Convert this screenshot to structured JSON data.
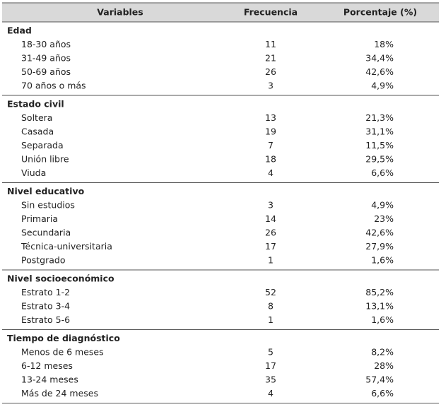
{
  "table": {
    "columns": [
      "Variables",
      "Frecuencia",
      "Porcentaje (%)"
    ],
    "groups": [
      {
        "title": "Edad",
        "rows": [
          [
            "18-30 años",
            11,
            "18%"
          ],
          [
            "31-49 años",
            21,
            "34,4%"
          ],
          [
            "50-69 años",
            26,
            "42,6%"
          ],
          [
            "70 años o más",
            3,
            "4,9%"
          ]
        ]
      },
      {
        "title": "Estado civil",
        "rows": [
          [
            "Soltera",
            13,
            "21,3%"
          ],
          [
            "Casada",
            19,
            "31,1%"
          ],
          [
            "Separada",
            7,
            "11,5%"
          ],
          [
            "Unión libre",
            18,
            "29,5%"
          ],
          [
            "Viuda",
            4,
            "6,6%"
          ]
        ]
      },
      {
        "title": "Nivel educativo",
        "rows": [
          [
            "Sin estudios",
            3,
            "4,9%"
          ],
          [
            "Primaria",
            14,
            "23%"
          ],
          [
            "Secundaria",
            26,
            "42,6%"
          ],
          [
            "Técnica-universitaria",
            17,
            "27,9%"
          ],
          [
            "Postgrado",
            1,
            "1,6%"
          ]
        ]
      },
      {
        "title": "Nivel socioeconómico",
        "rows": [
          [
            "Estrato 1-2",
            52,
            "85,2%"
          ],
          [
            "Estrato 3-4",
            8,
            "13,1%"
          ],
          [
            "Estrato 5-6",
            1,
            "1,6%"
          ]
        ]
      },
      {
        "title": "Tiempo de diagnóstico",
        "rows": [
          [
            "Menos de 6 meses",
            5,
            "8,2%"
          ],
          [
            "6-12 meses",
            17,
            "28%"
          ],
          [
            "13-24 meses",
            35,
            "57,4%"
          ],
          [
            "Más de 24 meses",
            4,
            "6,6%"
          ]
        ]
      }
    ]
  }
}
